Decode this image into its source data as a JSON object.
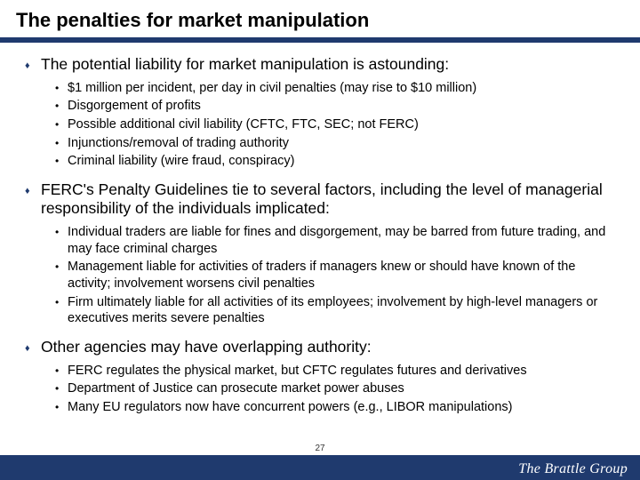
{
  "title": "The penalties for market manipulation",
  "colors": {
    "accent": "#1f3a6e",
    "bg": "#ffffff",
    "text": "#000000"
  },
  "page_number": "27",
  "brand": "The Brattle Group",
  "items": [
    {
      "text": "The potential liability for market manipulation is astounding:",
      "subs": [
        "$1 million per incident, per day in civil penalties (may rise to $10 million)",
        "Disgorgement of profits",
        "Possible additional civil liability (CFTC, FTC, SEC; not FERC)",
        "Injunctions/removal of trading authority",
        "Criminal liability (wire fraud, conspiracy)"
      ]
    },
    {
      "text": "FERC's Penalty Guidelines tie to several factors, including the level of managerial responsibility of the individuals implicated:",
      "subs": [
        "Individual traders are liable for fines and disgorgement, may be barred from future trading, and may face criminal charges",
        "Management liable for activities of traders if managers knew or should have known of the activity; involvement worsens civil penalties",
        "Firm ultimately liable for all activities of its employees; involvement by high-level managers or executives merits severe penalties"
      ]
    },
    {
      "text": "Other agencies may have overlapping authority:",
      "subs": [
        "FERC regulates the physical market, but CFTC regulates futures and derivatives",
        "Department of Justice can prosecute market power abuses",
        "Many EU regulators now have concurrent powers (e.g., LIBOR manipulations)"
      ]
    }
  ]
}
